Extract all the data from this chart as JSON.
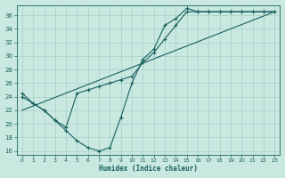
{
  "bg_color": "#c8e8e0",
  "grid_color": "#a8d0c8",
  "line_color": "#1a6060",
  "xlabel": "Humidex (Indice chaleur)",
  "ylim": [
    15.5,
    37.5
  ],
  "xlim": [
    -0.5,
    23.5
  ],
  "yticks": [
    16,
    18,
    20,
    22,
    24,
    26,
    28,
    30,
    32,
    34,
    36
  ],
  "xticks": [
    0,
    1,
    2,
    3,
    4,
    5,
    6,
    7,
    8,
    9,
    10,
    11,
    12,
    13,
    14,
    15,
    16,
    17,
    18,
    19,
    20,
    21,
    22,
    23
  ],
  "line1_x": [
    0,
    1,
    2,
    3,
    4,
    5,
    6,
    7,
    8,
    9,
    10,
    11,
    12,
    13,
    14,
    15,
    16,
    17,
    18,
    19,
    20,
    21,
    22,
    23
  ],
  "line1_y": [
    24.5,
    23.0,
    22.0,
    20.5,
    19.0,
    17.5,
    16.5,
    16.0,
    16.5,
    21.0,
    26.0,
    29.5,
    31.0,
    34.5,
    35.5,
    37.0,
    36.5,
    36.5,
    36.5,
    36.5,
    36.5,
    36.5,
    36.5,
    36.5
  ],
  "line2_x": [
    0,
    1,
    2,
    3,
    4,
    5,
    6,
    7,
    8,
    9,
    10,
    11,
    12,
    13,
    14,
    15,
    16,
    17,
    18,
    19,
    20,
    21,
    22,
    23
  ],
  "line2_y": [
    24.0,
    23.0,
    22.0,
    20.5,
    19.5,
    24.5,
    25.0,
    25.5,
    26.0,
    26.5,
    27.0,
    29.0,
    30.5,
    32.5,
    34.5,
    36.5,
    36.5,
    36.5,
    36.5,
    36.5,
    36.5,
    36.5,
    36.5,
    36.5
  ],
  "line3_x": [
    0,
    23
  ],
  "line3_y": [
    22.0,
    36.5
  ]
}
